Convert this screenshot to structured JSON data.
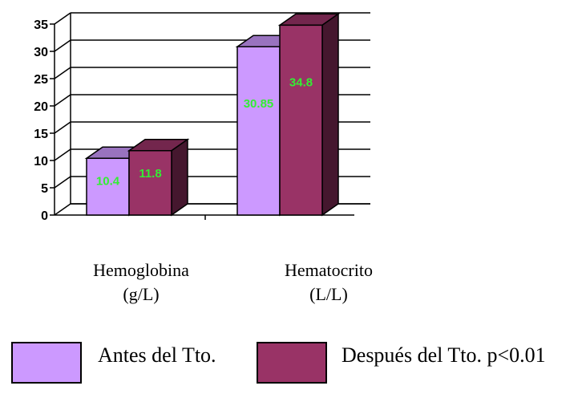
{
  "chart_data": {
    "type": "bar",
    "categories": [
      {
        "line1": "Hemoglobina",
        "line2": "(g/L)"
      },
      {
        "line1": "Hematocrito",
        "line2": "(L/L)"
      }
    ],
    "series": [
      {
        "name": "Antes del Tto.",
        "values": [
          10.4,
          30.85
        ],
        "labels": [
          "10.4",
          "30.85"
        ],
        "color": "#cc99ff"
      },
      {
        "name": "Después del Tto. p<0.01",
        "values": [
          11.8,
          34.8
        ],
        "labels": [
          "11.8",
          "34.8"
        ],
        "color": "#993366"
      }
    ],
    "ylim": [
      0,
      35
    ],
    "yticks": [
      0,
      5,
      10,
      15,
      20,
      25,
      30,
      35
    ],
    "grid": true,
    "style": "3d",
    "data_label_color": "#33ee33",
    "legend_position": "bottom"
  }
}
